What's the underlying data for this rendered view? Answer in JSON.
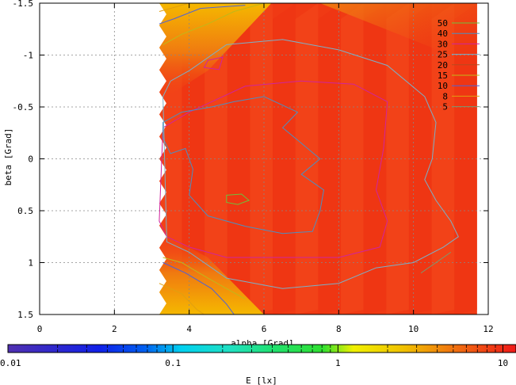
{
  "chart_data": {
    "type": "heatmap",
    "xlabel": "alpha [Grad]",
    "ylabel": "beta [Grad]",
    "colorbar_label": "E [lx]",
    "xlim": [
      0,
      12
    ],
    "ylim": [
      -1.5,
      1.5
    ],
    "y_inverted": true,
    "grid": true,
    "x_ticks": [
      0,
      2,
      4,
      6,
      8,
      10,
      12
    ],
    "y_ticks": [
      -1.5,
      -1,
      -0.5,
      0,
      0.5,
      1,
      1.5
    ],
    "x_tick_labels": [
      "0",
      "2",
      "4",
      "6",
      "8",
      "10",
      "12"
    ],
    "y_tick_labels": [
      "-1.5",
      "-1",
      "-0.5",
      "0",
      "0.5",
      "1",
      "1.5"
    ],
    "colorbar": {
      "scale": "log",
      "range": [
        0.01,
        12
      ],
      "tick_values": [
        0.01,
        0.1,
        1,
        10
      ],
      "tick_labels": [
        "0.01",
        "0.1",
        "1",
        "10"
      ]
    },
    "data_extent": {
      "alpha": [
        3.2,
        11.7
      ],
      "beta": [
        -1.5,
        1.5
      ]
    },
    "legend": {
      "placement": "top-right",
      "entries": [
        {
          "label": "50",
          "color": "#6ec13c"
        },
        {
          "label": "40",
          "color": "#4c8fc2"
        },
        {
          "label": "30",
          "color": "#d0249c"
        },
        {
          "label": "25",
          "color": "#7bb0c8"
        },
        {
          "label": "20",
          "color": "#b84a1f"
        },
        {
          "label": "15",
          "color": "#c0b81a"
        },
        {
          "label": "10",
          "color": "#4e62d8"
        },
        {
          "label": "8",
          "color": "#e0a010"
        },
        {
          "label": "5",
          "color": "#7a9a70"
        }
      ]
    },
    "contours": [
      {
        "level": "50",
        "color": "#6ec13c",
        "closed": true,
        "points": [
          [
            5.0,
            0.35
          ],
          [
            5.4,
            0.34
          ],
          [
            5.6,
            0.4
          ],
          [
            5.3,
            0.44
          ],
          [
            5.0,
            0.42
          ]
        ]
      },
      {
        "level": "30",
        "color": "#d0249c",
        "closed": true,
        "points": [
          [
            3.3,
            -0.3
          ],
          [
            4.0,
            -0.45
          ],
          [
            5.5,
            -0.7
          ],
          [
            7.0,
            -0.75
          ],
          [
            8.4,
            -0.72
          ],
          [
            9.3,
            -0.55
          ],
          [
            9.2,
            -0.1
          ],
          [
            9.0,
            0.3
          ],
          [
            9.3,
            0.6
          ],
          [
            9.1,
            0.85
          ],
          [
            8.0,
            0.95
          ],
          [
            6.5,
            0.95
          ],
          [
            5.0,
            0.95
          ],
          [
            4.0,
            0.85
          ],
          [
            3.4,
            0.75
          ],
          [
            3.2,
            0.6
          ]
        ]
      },
      {
        "level": "30",
        "color": "#d0249c",
        "closed": true,
        "points": [
          [
            4.5,
            -0.95
          ],
          [
            4.9,
            -0.98
          ],
          [
            4.8,
            -0.86
          ],
          [
            4.4,
            -0.88
          ]
        ]
      },
      {
        "level": "40",
        "color": "#4c8fc2",
        "closed": true,
        "points": [
          [
            3.3,
            -0.35
          ],
          [
            3.8,
            -0.45
          ],
          [
            4.6,
            -0.5
          ],
          [
            5.2,
            -0.55
          ],
          [
            6.0,
            -0.6
          ],
          [
            6.9,
            -0.45
          ],
          [
            6.5,
            -0.3
          ],
          [
            7.0,
            -0.15
          ],
          [
            7.5,
            0.0
          ],
          [
            7.0,
            0.15
          ],
          [
            7.6,
            0.3
          ],
          [
            7.5,
            0.5
          ],
          [
            7.3,
            0.7
          ],
          [
            6.5,
            0.72
          ],
          [
            5.5,
            0.65
          ],
          [
            4.5,
            0.55
          ],
          [
            4.0,
            0.35
          ],
          [
            4.1,
            0.1
          ],
          [
            3.9,
            -0.1
          ],
          [
            3.5,
            -0.05
          ],
          [
            3.3,
            -0.2
          ]
        ]
      },
      {
        "level": "25",
        "color": "#7bb0c8",
        "closed": true,
        "points": [
          [
            3.3,
            -0.6
          ],
          [
            3.5,
            -0.75
          ],
          [
            4.0,
            -0.85
          ],
          [
            5.0,
            -1.1
          ],
          [
            6.5,
            -1.15
          ],
          [
            8.0,
            -1.05
          ],
          [
            9.3,
            -0.9
          ],
          [
            10.3,
            -0.6
          ],
          [
            10.6,
            -0.35
          ],
          [
            10.5,
            0.0
          ],
          [
            10.3,
            0.2
          ],
          [
            10.6,
            0.4
          ],
          [
            11.0,
            0.6
          ],
          [
            11.2,
            0.75
          ],
          [
            10.8,
            0.85
          ],
          [
            10.0,
            1.0
          ],
          [
            9.0,
            1.05
          ],
          [
            8.0,
            1.2
          ],
          [
            6.5,
            1.25
          ],
          [
            5.0,
            1.15
          ],
          [
            4.0,
            0.9
          ],
          [
            3.4,
            0.8
          ]
        ]
      },
      {
        "level": "10",
        "color": "#4e62d8",
        "closed": false,
        "points": [
          [
            3.2,
            -1.3
          ],
          [
            3.6,
            -1.35
          ],
          [
            4.3,
            -1.45
          ],
          [
            5.5,
            -1.48
          ]
        ]
      },
      {
        "level": "10",
        "color": "#4e62d8",
        "closed": false,
        "points": [
          [
            3.3,
            1.0
          ],
          [
            3.9,
            1.1
          ],
          [
            4.6,
            1.25
          ],
          [
            5.0,
            1.4
          ],
          [
            5.2,
            1.5
          ]
        ]
      },
      {
        "level": "15",
        "color": "#c0b81a",
        "closed": false,
        "points": [
          [
            3.3,
            -1.1
          ],
          [
            3.8,
            -1.2
          ],
          [
            4.5,
            -1.3
          ],
          [
            5.2,
            -1.42
          ],
          [
            6.0,
            -1.5
          ]
        ]
      },
      {
        "level": "15",
        "color": "#c0b81a",
        "closed": false,
        "points": [
          [
            3.3,
            0.95
          ],
          [
            3.8,
            1.0
          ],
          [
            4.5,
            1.15
          ],
          [
            5.0,
            1.25
          ],
          [
            5.5,
            1.35
          ]
        ]
      },
      {
        "level": "8",
        "color": "#e0a010",
        "closed": false,
        "points": [
          [
            3.2,
            -1.42
          ],
          [
            3.5,
            -1.45
          ],
          [
            4.0,
            -1.5
          ]
        ]
      },
      {
        "level": "8",
        "color": "#e0a010",
        "closed": false,
        "points": [
          [
            3.2,
            1.2
          ],
          [
            3.8,
            1.3
          ],
          [
            4.2,
            1.45
          ],
          [
            4.4,
            1.5
          ]
        ]
      },
      {
        "level": "5",
        "color": "#7a9a70",
        "closed": false,
        "points": [
          [
            10.2,
            1.1
          ],
          [
            10.6,
            1.0
          ],
          [
            11.0,
            0.9
          ]
        ]
      }
    ]
  }
}
